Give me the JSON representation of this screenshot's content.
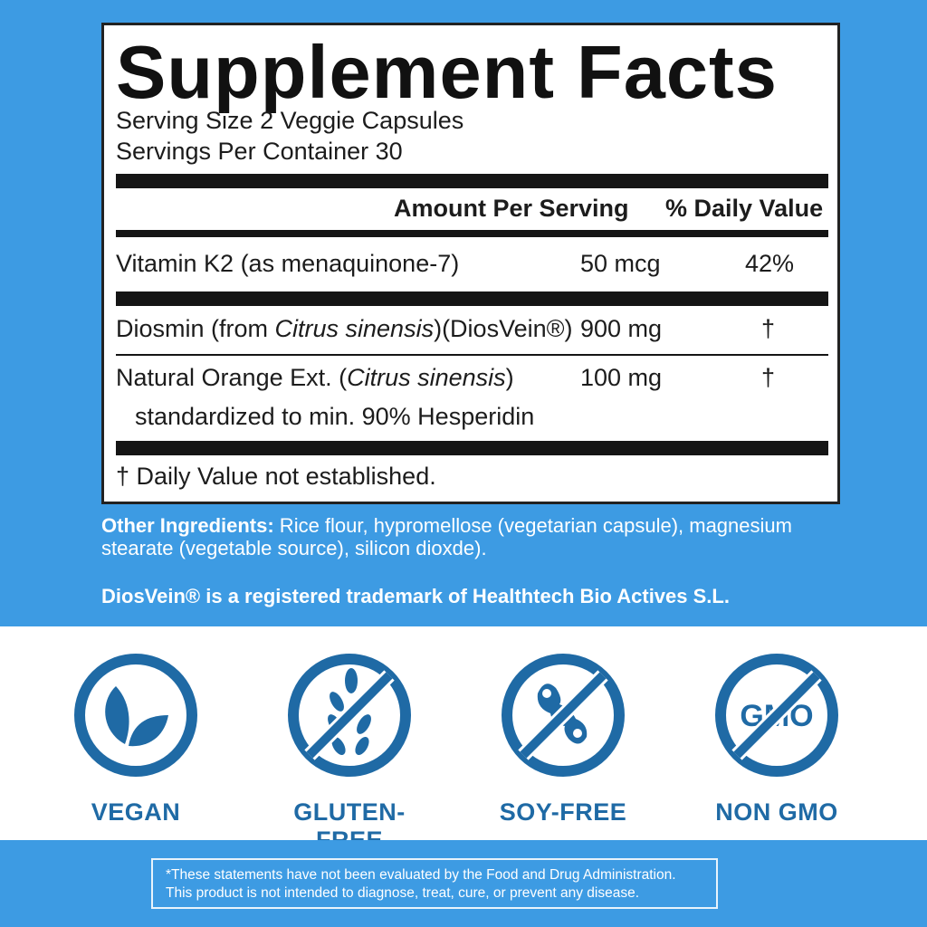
{
  "colors": {
    "background_blue": "#3d9be3",
    "icon_blue": "#1f6aa5",
    "label_black": "#151515"
  },
  "facts": {
    "title": "Supplement Facts",
    "serving_size": "Serving Size  2 Veggie Capsules",
    "servings_per_container": "Servings Per Container  30",
    "header_amount": "Amount Per Serving",
    "header_dv": "% Daily Value",
    "rows": [
      {
        "name": "Vitamin K2 (as menaquinone-7)",
        "amount": "50 mcg",
        "dv": "42%"
      },
      {
        "name_pre": "Diosmin (from ",
        "name_italic": "Citrus sinensis",
        "name_post": ")(DiosVein®)",
        "amount": "900 mg",
        "dv": "†"
      },
      {
        "name_pre": "Natural Orange Ext. (",
        "name_italic": "Citrus sinensis",
        "name_post": ")",
        "sub": "standardized to min. 90% Hesperidin",
        "amount": "100 mg",
        "dv": "†"
      }
    ],
    "footnote": "† Daily Value not established."
  },
  "other_ingredients": {
    "label": "Other Ingredients:",
    "text": " Rice flour, hypromellose (vegetarian capsule), magnesium stearate (vegetable source), silicon dioxde)."
  },
  "trademark": "DiosVein® is a registered trademark of Healthtech Bio Actives S.L.",
  "badges": [
    {
      "label": "VEGAN",
      "icon": "leaf-icon"
    },
    {
      "label": "GLUTEN-FREE",
      "icon": "no-wheat-icon"
    },
    {
      "label": "SOY-FREE",
      "icon": "no-soy-icon"
    },
    {
      "label": "NON GMO",
      "icon": "no-gmo-icon",
      "icon_text": "GMO"
    }
  ],
  "disclaimer": {
    "line1": "*These statements have not been evaluated by the Food and Drug Administration.",
    "line2": "This product is not intended to diagnose, treat, cure, or prevent any disease."
  }
}
